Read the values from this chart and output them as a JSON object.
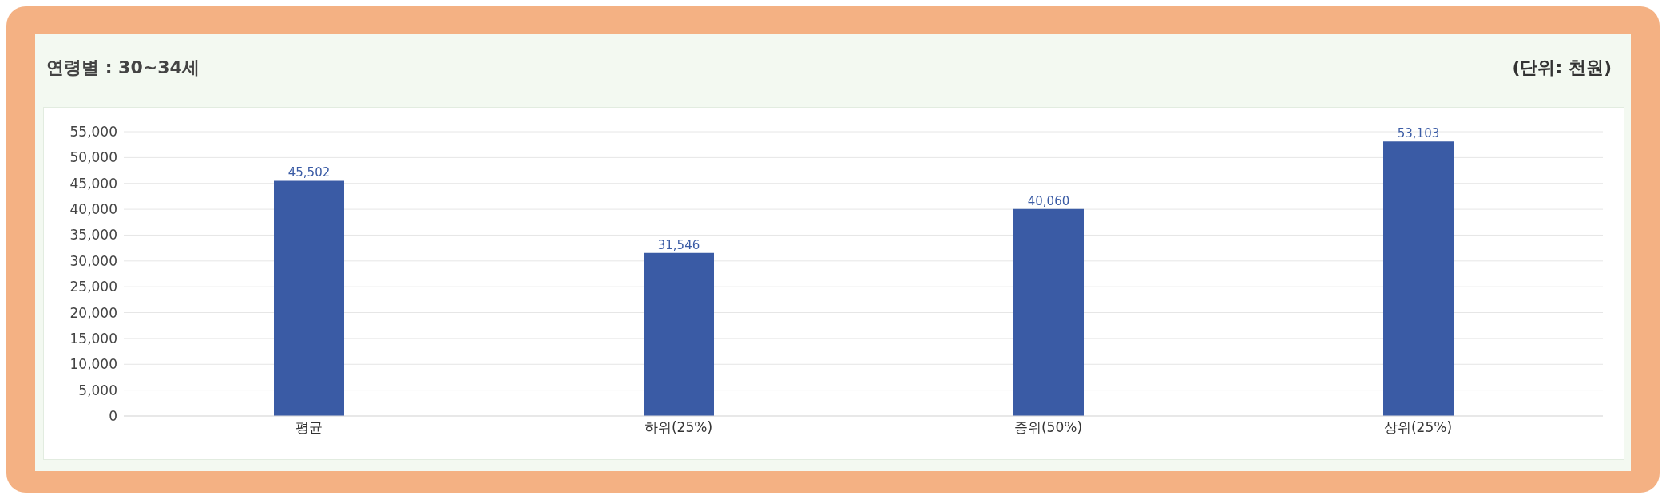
{
  "chart_data": {
    "type": "bar",
    "title": "연령별 : 30~34세",
    "subtitle": "(단위: 천원)",
    "categories": [
      "평균",
      "하위(25%)",
      "중위(50%)",
      "상위(25%)"
    ],
    "values": [
      45502,
      31546,
      40060,
      53103
    ],
    "value_labels": [
      "45,502",
      "31,546",
      "40,060",
      "53,103"
    ],
    "color": "#3a5ba5",
    "ylim": [
      0,
      55000
    ],
    "yticks": [
      0,
      {
        "value": 5000,
        "label": "5,000"
      },
      {
        "value": 10000,
        "label": "10,000"
      },
      {
        "value": 15000,
        "label": "15,000"
      },
      {
        "value": 20000,
        "label": "20,000"
      },
      {
        "value": 25000,
        "label": "25,000"
      },
      {
        "value": 30000,
        "label": "30,000"
      },
      {
        "value": 35000,
        "label": "35,000"
      },
      {
        "value": 40000,
        "label": "40,000"
      },
      {
        "value": 45000,
        "label": "45,000"
      },
      {
        "value": 50000,
        "label": "50,000"
      },
      {
        "value": 55000,
        "label": "55,000"
      }
    ],
    "grid": "y"
  }
}
